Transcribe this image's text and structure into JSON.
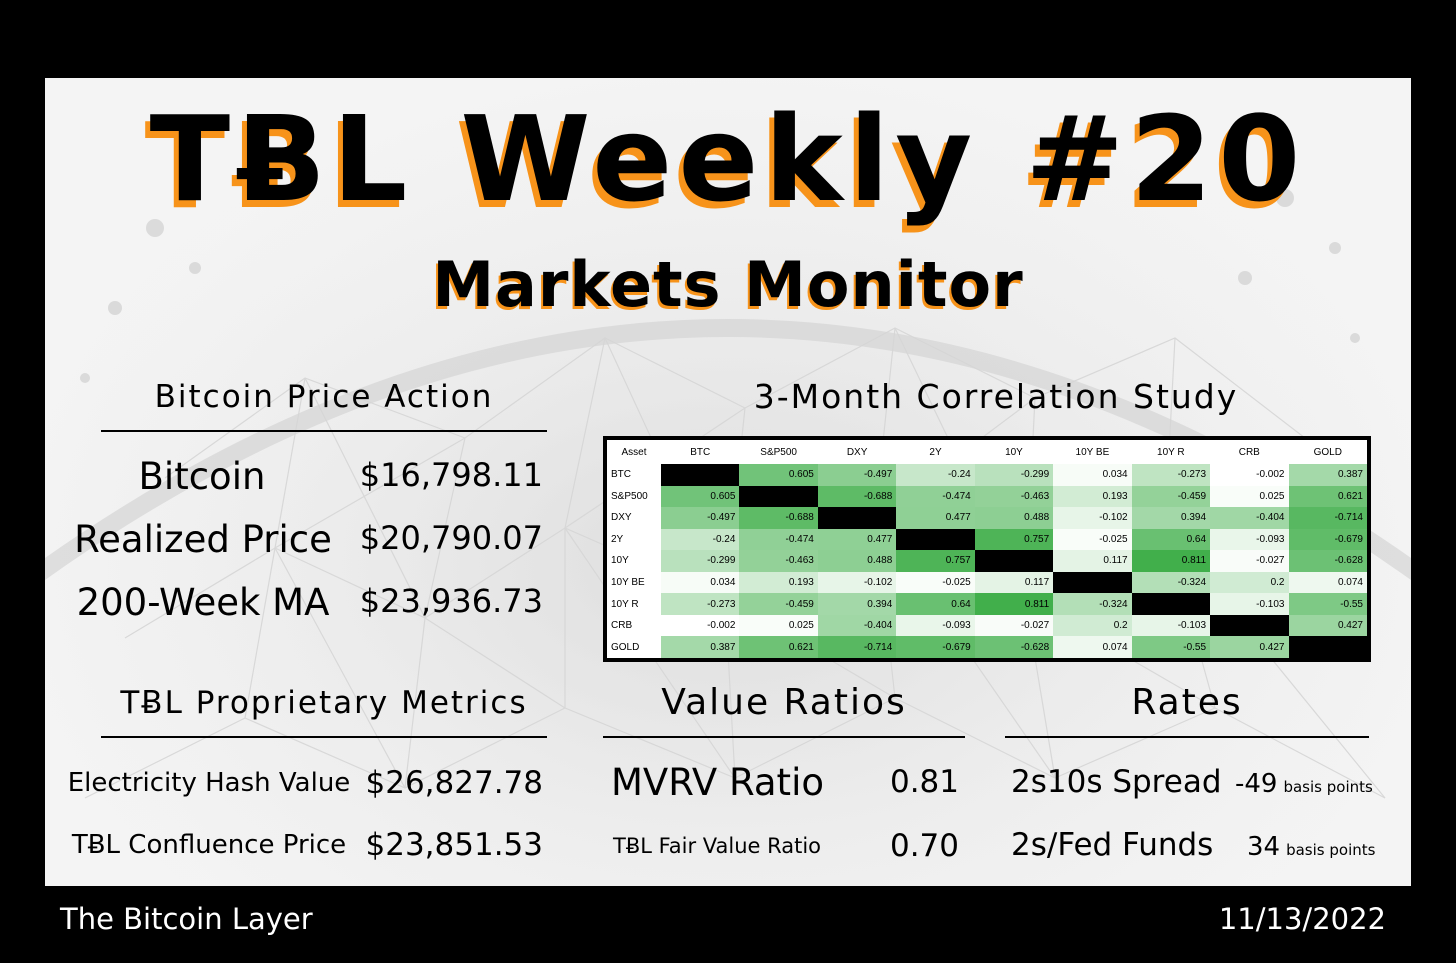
{
  "title": "TɃL Weekly #20",
  "subtitle": "Markets Monitor",
  "price_action": {
    "heading": "Bitcoin Price Action",
    "rows": [
      {
        "label": "Bitcoin",
        "value": "$16,798.11"
      },
      {
        "label": "Realized Price",
        "value": "$20,790.07"
      },
      {
        "label": "200-Week MA",
        "value": "$23,936.73"
      }
    ]
  },
  "correlation": {
    "heading": "3-Month Correlation Study",
    "columns": [
      "Asset",
      "BTC",
      "S&P500",
      "DXY",
      "2Y",
      "10Y",
      "10Y BE",
      "10Y R",
      "CRB",
      "GOLD"
    ],
    "rows": [
      {
        "asset": "BTC",
        "values": [
          null,
          0.605,
          -0.497,
          -0.24,
          -0.299,
          0.034,
          -0.273,
          -0.002,
          0.387
        ]
      },
      {
        "asset": "S&P500",
        "values": [
          0.605,
          null,
          -0.688,
          -0.474,
          -0.463,
          0.193,
          -0.459,
          0.025,
          0.621
        ]
      },
      {
        "asset": "DXY",
        "values": [
          -0.497,
          -0.688,
          null,
          0.477,
          0.488,
          -0.102,
          0.394,
          -0.404,
          -0.714
        ]
      },
      {
        "asset": "2Y",
        "values": [
          -0.24,
          -0.474,
          0.477,
          null,
          0.757,
          -0.025,
          0.64,
          -0.093,
          -0.679
        ]
      },
      {
        "asset": "10Y",
        "values": [
          -0.299,
          -0.463,
          0.488,
          0.757,
          null,
          0.117,
          0.811,
          -0.027,
          -0.628
        ]
      },
      {
        "asset": "10Y BE",
        "values": [
          0.034,
          0.193,
          -0.102,
          -0.025,
          0.117,
          null,
          -0.324,
          0.2,
          0.074
        ]
      },
      {
        "asset": "10Y R",
        "values": [
          -0.273,
          -0.459,
          0.394,
          0.64,
          0.811,
          -0.324,
          null,
          -0.103,
          -0.55
        ]
      },
      {
        "asset": "CRB",
        "values": [
          -0.002,
          0.025,
          -0.404,
          -0.093,
          -0.027,
          0.2,
          -0.103,
          null,
          0.427
        ]
      },
      {
        "asset": "GOLD",
        "values": [
          0.387,
          0.621,
          -0.714,
          -0.679,
          -0.628,
          0.074,
          -0.55,
          0.427,
          null
        ]
      }
    ],
    "colors": {
      "diagonal": "#000000",
      "low": "#ffffff",
      "high": "#3fae49"
    }
  },
  "proprietary": {
    "heading": "TɃL Proprietary Metrics",
    "rows": [
      {
        "label": "Electricity Hash Value",
        "value": "$26,827.78"
      },
      {
        "label": "TɃL Confluence Price",
        "value": "$23,851.53"
      }
    ]
  },
  "value_ratios": {
    "heading": "Value Ratios",
    "rows": [
      {
        "label": "MVRV Ratio",
        "value": "0.81"
      },
      {
        "label": "TɃL Fair Value Ratio",
        "value": "0.70"
      }
    ]
  },
  "rates": {
    "heading": "Rates",
    "rows": [
      {
        "label": "2s10s Spread",
        "value": "-49",
        "unit": "basis points"
      },
      {
        "label": "2s/Fed Funds",
        "value": "34",
        "unit": "basis points"
      }
    ]
  },
  "footer": {
    "left": "The Bitcoin Layer",
    "right": "11/13/2022"
  },
  "brand_colors": {
    "accent": "#f7931a",
    "background": "#000000"
  }
}
